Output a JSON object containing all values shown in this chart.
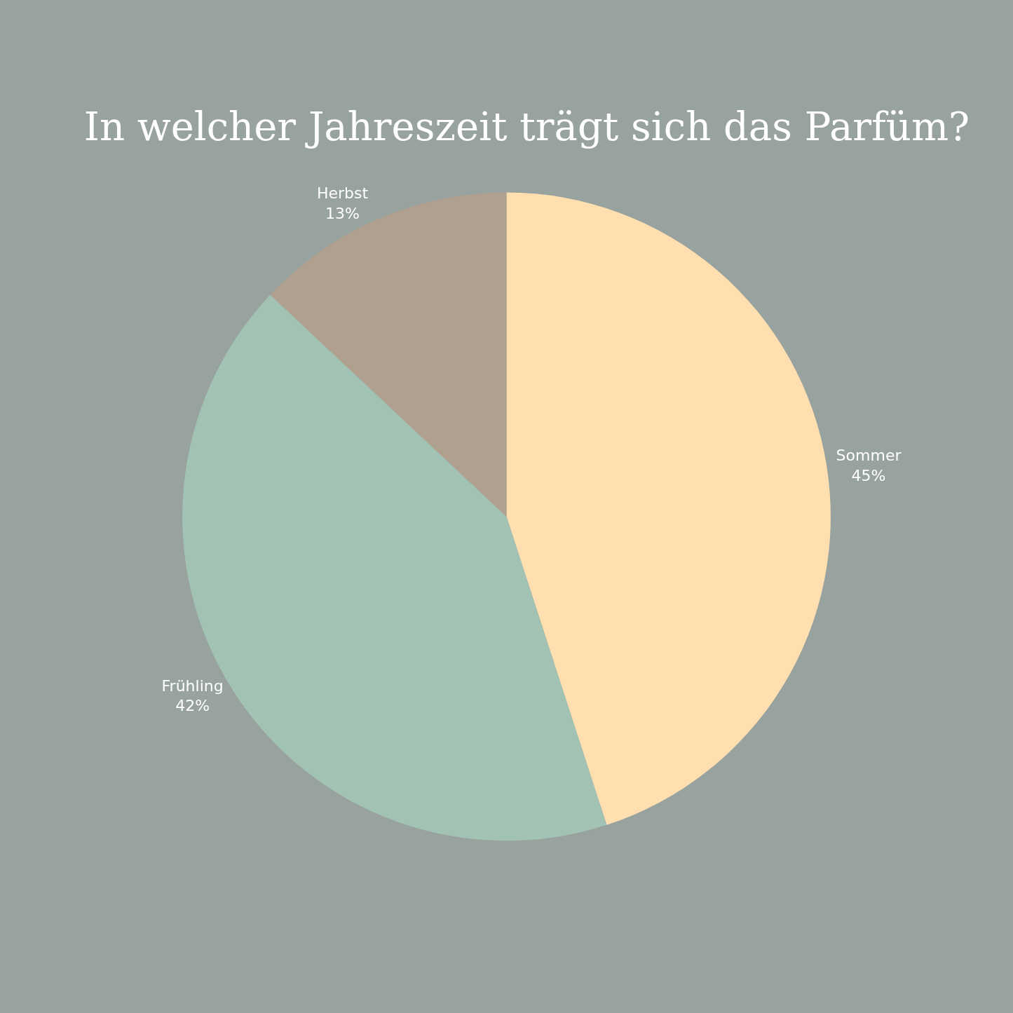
{
  "chart_data": {
    "type": "pie",
    "title": "In welcher Jahreszeit trägt sich das Parfüm?",
    "categories": [
      "Sommer",
      "Frühling",
      "Herbst"
    ],
    "values": [
      45,
      42,
      13
    ],
    "value_labels": [
      "45%",
      "42%",
      "13%"
    ],
    "colors": [
      "#ffdfb0",
      "#a2c2b4",
      "#b0a090"
    ],
    "legend": false
  }
}
